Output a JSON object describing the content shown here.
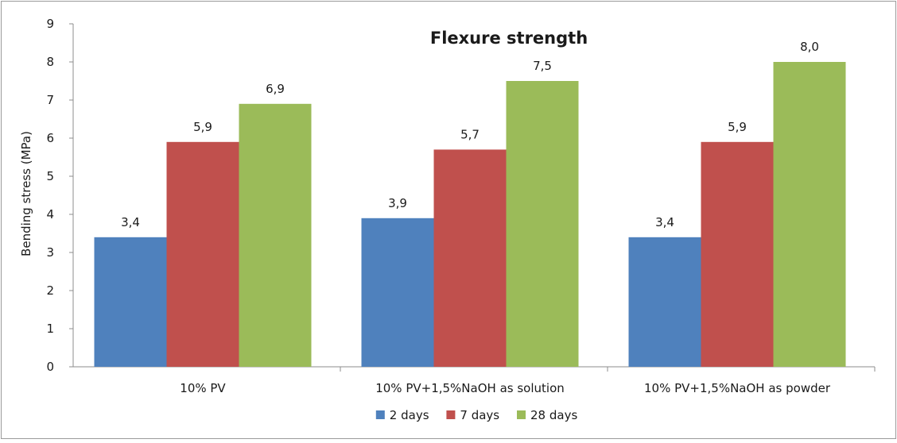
{
  "chart_data": {
    "type": "bar",
    "title": "Flexure strength",
    "ylabel": "Bending stress (MPa)",
    "xlabel": "",
    "ylim": [
      0,
      9
    ],
    "yticks": [
      0,
      1,
      2,
      3,
      4,
      5,
      6,
      7,
      8,
      9
    ],
    "categories": [
      "10% PV",
      "10% PV+1,5%NaOH as solution",
      "10% PV+1,5%NaOH as powder"
    ],
    "series": [
      {
        "name": "2 days",
        "color": "#4f81bd",
        "values": [
          3.4,
          3.9,
          3.4
        ],
        "labels": [
          "3,4",
          "3,9",
          "3,4"
        ]
      },
      {
        "name": "7 days",
        "color": "#c0504d",
        "values": [
          5.9,
          5.7,
          5.9
        ],
        "labels": [
          "5,9",
          "5,7",
          "5,9"
        ]
      },
      {
        "name": "28 days",
        "color": "#9bbb59",
        "values": [
          6.9,
          7.5,
          8.0
        ],
        "labels": [
          "6,9",
          "7,5",
          "8,0"
        ]
      }
    ],
    "grid": false,
    "legend": "bottom"
  }
}
